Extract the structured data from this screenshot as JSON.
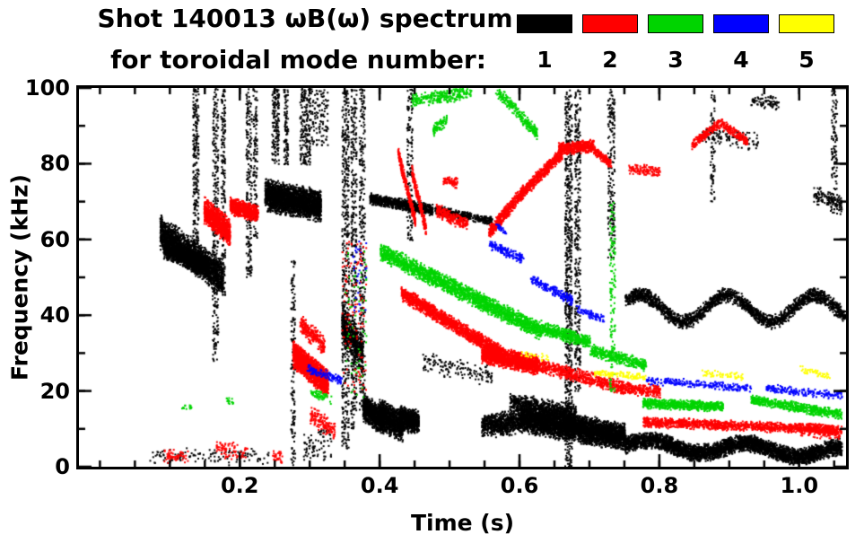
{
  "header": {
    "title_line1": "Shot 140013 ωB(ω) spectrum",
    "title_line2": "for toroidal mode number:",
    "legend": [
      {
        "label": "1",
        "color": "#000000"
      },
      {
        "label": "2",
        "color": "#ff0000"
      },
      {
        "label": "3",
        "color": "#00d400"
      },
      {
        "label": "4",
        "color": "#0000ff"
      },
      {
        "label": "5",
        "color": "#ffff00"
      }
    ]
  },
  "chart_data": {
    "type": "scatter",
    "title": "Shot 140013 ωB(ω) spectrum for toroidal mode number",
    "xlabel": "Time (s)",
    "ylabel": "Frequency (kHz)",
    "xlim": [
      -0.03,
      1.067
    ],
    "ylim": [
      0,
      100
    ],
    "x_major_ticks": [
      0.2,
      0.4,
      0.6,
      0.8,
      1.0
    ],
    "x_tick_labels": [
      "0.2",
      "0.4",
      "0.6",
      "0.8",
      "1.0"
    ],
    "x_minor_step": 0.05,
    "y_major_ticks": [
      0,
      20,
      40,
      60,
      80,
      100
    ],
    "y_tick_labels": [
      "0",
      "20",
      "40",
      "60",
      "80",
      "100"
    ],
    "y_minor_step": 10,
    "grid": false,
    "legend_position": "top-right",
    "series": [
      {
        "name": "1",
        "color": "#000000",
        "tracks": [
          {
            "t0": 0.085,
            "t1": 0.175,
            "f0": 62,
            "f1": 50,
            "w": 5,
            "n": 2200
          },
          {
            "t0": 0.09,
            "t1": 0.155,
            "f0": 58,
            "f1": 53,
            "w": 3,
            "n": 1200
          },
          {
            "t0": 0.132,
            "t1": 0.14,
            "f0": 55,
            "f1": 100,
            "u": true,
            "n": 250
          },
          {
            "t0": 0.16,
            "t1": 0.168,
            "f0": 28,
            "f1": 100,
            "u": true,
            "n": 300
          },
          {
            "t0": 0.172,
            "t1": 0.178,
            "f0": 45,
            "f1": 100,
            "u": true,
            "n": 200
          },
          {
            "t0": 0.208,
            "t1": 0.216,
            "f0": 50,
            "f1": 100,
            "u": true,
            "n": 200
          },
          {
            "t0": 0.218,
            "t1": 0.224,
            "f0": 60,
            "f1": 100,
            "u": true,
            "n": 120
          },
          {
            "t0": 0.235,
            "t1": 0.315,
            "f0": 72,
            "f1": 69,
            "w": 4.5,
            "n": 2600
          },
          {
            "t0": 0.245,
            "t1": 0.255,
            "f0": 80,
            "f1": 100,
            "u": true,
            "n": 150
          },
          {
            "t0": 0.262,
            "t1": 0.268,
            "f0": 80,
            "f1": 100,
            "u": true,
            "n": 100
          },
          {
            "t0": 0.285,
            "t1": 0.3,
            "f0": 80,
            "f1": 100,
            "u": true,
            "n": 200
          },
          {
            "t0": 0.272,
            "t1": 0.278,
            "f0": 0,
            "f1": 55,
            "u": true,
            "n": 150
          },
          {
            "t0": 0.29,
            "t1": 0.33,
            "f0": 2,
            "f1": 10,
            "u": true,
            "n": 80
          },
          {
            "t0": 0.3,
            "t1": 0.325,
            "f0": 85,
            "f1": 100,
            "u": true,
            "n": 120
          },
          {
            "t0": 0.345,
            "t1": 0.355,
            "f0": 5,
            "f1": 100,
            "u": true,
            "n": 500
          },
          {
            "t0": 0.358,
            "t1": 0.366,
            "f0": 10,
            "f1": 100,
            "u": true,
            "n": 350
          },
          {
            "t0": 0.37,
            "t1": 0.378,
            "f0": 15,
            "f1": 100,
            "u": true,
            "n": 300
          },
          {
            "t0": 0.345,
            "t1": 0.375,
            "f0": 38,
            "f1": 30,
            "w": 6,
            "n": 600
          },
          {
            "t0": 0.375,
            "t1": 0.405,
            "f0": 16,
            "f1": 12,
            "w": 4,
            "n": 900
          },
          {
            "t0": 0.398,
            "t1": 0.432,
            "f0": 14,
            "f1": 11,
            "w": 4.5,
            "n": 1000
          },
          {
            "t0": 0.428,
            "t1": 0.455,
            "f0": 13,
            "f1": 12,
            "w": 3.5,
            "n": 700
          },
          {
            "t0": 0.385,
            "t1": 0.475,
            "f0": 71,
            "f1": 68,
            "w": 1.6,
            "n": 900
          },
          {
            "t0": 0.478,
            "t1": 0.53,
            "f0": 68,
            "f1": 66,
            "w": 1.4,
            "n": 350
          },
          {
            "t0": 0.532,
            "t1": 0.56,
            "f0": 66,
            "f1": 65,
            "w": 1.2,
            "n": 120
          },
          {
            "t0": 0.438,
            "t1": 0.446,
            "f0": 60,
            "f1": 100,
            "u": true,
            "n": 150
          },
          {
            "t0": 0.46,
            "t1": 0.56,
            "f0": 28,
            "f1": 24,
            "w": 3,
            "n": 150
          },
          {
            "t0": 0.545,
            "t1": 0.6,
            "f0": 11,
            "f1": 12,
            "w": 3.5,
            "n": 700
          },
          {
            "t0": 0.585,
            "t1": 0.68,
            "f0": 17,
            "f1": 14,
            "w": 3,
            "n": 800
          },
          {
            "t0": 0.6,
            "t1": 0.75,
            "f0": 13,
            "f1": 8,
            "w": 4,
            "n": 4000
          },
          {
            "t0": 0.75,
            "t1": 1.06,
            "f0": 6,
            "f1": 4,
            "w": 2.5,
            "n": 4200,
            "wave": {
              "amp": 1.5,
              "per": 0.14,
              "ph": 0
            }
          },
          {
            "t0": 0.664,
            "t1": 0.674,
            "f0": 0,
            "f1": 100,
            "u": true,
            "n": 700
          },
          {
            "t0": 0.678,
            "t1": 0.686,
            "f0": 20,
            "f1": 100,
            "u": true,
            "n": 350
          },
          {
            "t0": 0.725,
            "t1": 0.735,
            "f0": 55,
            "f1": 100,
            "u": true,
            "n": 200
          },
          {
            "t0": 0.75,
            "t1": 1.065,
            "f0": 42,
            "f1": 42,
            "w": 2.2,
            "n": 2200,
            "wave": {
              "amp": 3.5,
              "per": 0.125,
              "ph": 0.5
            }
          },
          {
            "t0": 0.86,
            "t1": 0.94,
            "f0": 88,
            "f1": 86,
            "w": 2.5,
            "n": 120
          },
          {
            "t0": 0.93,
            "t1": 0.97,
            "f0": 97,
            "f1": 96,
            "w": 2,
            "n": 80
          },
          {
            "t0": 0.872,
            "t1": 0.878,
            "f0": 70,
            "f1": 100,
            "u": true,
            "n": 80
          },
          {
            "t0": 1.02,
            "t1": 1.06,
            "f0": 72,
            "f1": 69,
            "w": 3,
            "n": 150
          },
          {
            "t0": 1.045,
            "t1": 1.053,
            "f0": 70,
            "f1": 100,
            "u": true,
            "n": 100
          },
          {
            "t0": 0.07,
            "t1": 0.24,
            "f0": 3,
            "f1": 3,
            "w": 2.5,
            "n": 130
          }
        ]
      },
      {
        "name": "2",
        "color": "#ff0000",
        "tracks": [
          {
            "t0": 0.148,
            "t1": 0.185,
            "f0": 68,
            "f1": 62,
            "w": 4,
            "n": 900
          },
          {
            "t0": 0.185,
            "t1": 0.225,
            "f0": 69,
            "f1": 67,
            "w": 2.5,
            "n": 700
          },
          {
            "t0": 0.275,
            "t1": 0.325,
            "f0": 30,
            "f1": 22,
            "w": 4,
            "n": 1800
          },
          {
            "t0": 0.285,
            "t1": 0.32,
            "f0": 38,
            "f1": 32,
            "w": 3,
            "n": 250
          },
          {
            "t0": 0.3,
            "t1": 0.335,
            "f0": 14,
            "f1": 10,
            "w": 3,
            "n": 150
          },
          {
            "t0": 0.345,
            "t1": 0.38,
            "f0": 20,
            "f1": 60,
            "u": true,
            "n": 120
          },
          {
            "t0": 0.43,
            "t1": 0.575,
            "f0": 46,
            "f1": 30,
            "w": 2.2,
            "n": 1600
          },
          {
            "t0": 0.545,
            "t1": 0.625,
            "f0": 30,
            "f1": 27,
            "w": 2.8,
            "n": 1500
          },
          {
            "t0": 0.425,
            "t1": 0.45,
            "f0": 83,
            "f1": 65,
            "w": 2,
            "n": 350
          },
          {
            "t0": 0.445,
            "t1": 0.465,
            "f0": 78,
            "f1": 63,
            "w": 2,
            "n": 250
          },
          {
            "t0": 0.48,
            "t1": 0.525,
            "f0": 68,
            "f1": 64,
            "w": 2,
            "n": 250
          },
          {
            "t0": 0.49,
            "t1": 0.51,
            "f0": 76,
            "f1": 75,
            "w": 1.5,
            "n": 80
          },
          {
            "t0": 0.555,
            "t1": 0.6,
            "f0": 62,
            "f1": 72,
            "w": 2,
            "n": 400
          },
          {
            "t0": 0.6,
            "t1": 0.66,
            "f0": 72,
            "f1": 83,
            "w": 2,
            "n": 600
          },
          {
            "t0": 0.655,
            "t1": 0.705,
            "f0": 84,
            "f1": 85,
            "w": 1.8,
            "n": 500
          },
          {
            "t0": 0.705,
            "t1": 0.73,
            "f0": 84,
            "f1": 80,
            "w": 1.5,
            "n": 150
          },
          {
            "t0": 0.625,
            "t1": 0.75,
            "f0": 27,
            "f1": 21,
            "w": 2,
            "n": 700
          },
          {
            "t0": 0.75,
            "t1": 0.8,
            "f0": 21,
            "f1": 20,
            "w": 1.8,
            "n": 250
          },
          {
            "t0": 0.775,
            "t1": 1.055,
            "f0": 12,
            "f1": 10,
            "w": 1.5,
            "n": 1400
          },
          {
            "t0": 0.845,
            "t1": 0.885,
            "f0": 85,
            "f1": 91,
            "w": 1.5,
            "n": 200
          },
          {
            "t0": 0.885,
            "t1": 0.925,
            "f0": 91,
            "f1": 86,
            "w": 1.5,
            "n": 180
          },
          {
            "t0": 0.755,
            "t1": 0.8,
            "f0": 79,
            "f1": 78,
            "w": 1.5,
            "n": 120
          },
          {
            "t0": 0.09,
            "t1": 0.125,
            "f0": 3,
            "f1": 3,
            "w": 2,
            "n": 60
          },
          {
            "t0": 0.165,
            "t1": 0.21,
            "f0": 5,
            "f1": 4,
            "w": 2.5,
            "n": 80
          },
          {
            "t0": 0.245,
            "t1": 0.26,
            "f0": 3,
            "f1": 3,
            "w": 2,
            "n": 30
          },
          {
            "t0": 1.0,
            "t1": 1.06,
            "f0": 10,
            "f1": 9,
            "w": 2,
            "n": 150
          }
        ]
      },
      {
        "name": "3",
        "color": "#00d400",
        "tracks": [
          {
            "t0": 0.4,
            "t1": 0.63,
            "f0": 57,
            "f1": 36,
            "w": 2.6,
            "n": 2200
          },
          {
            "t0": 0.445,
            "t1": 0.53,
            "f0": 97,
            "f1": 99,
            "w": 2,
            "n": 300
          },
          {
            "t0": 0.475,
            "t1": 0.495,
            "f0": 89,
            "f1": 92,
            "w": 2,
            "n": 80
          },
          {
            "t0": 0.565,
            "t1": 0.625,
            "f0": 100,
            "f1": 88,
            "w": 2,
            "n": 250
          },
          {
            "t0": 0.63,
            "t1": 0.7,
            "f0": 37,
            "f1": 33,
            "w": 2,
            "n": 500
          },
          {
            "t0": 0.7,
            "t1": 0.78,
            "f0": 31,
            "f1": 27,
            "w": 1.8,
            "n": 400
          },
          {
            "t0": 0.728,
            "t1": 0.736,
            "f0": 20,
            "f1": 70,
            "u": true,
            "n": 150
          },
          {
            "t0": 0.775,
            "t1": 0.89,
            "f0": 17,
            "f1": 16,
            "w": 1.5,
            "n": 700
          },
          {
            "t0": 0.93,
            "t1": 1.06,
            "f0": 18,
            "f1": 14,
            "w": 1.5,
            "n": 600
          },
          {
            "t0": 0.115,
            "t1": 0.13,
            "f0": 16,
            "f1": 16,
            "w": 1,
            "n": 15
          },
          {
            "t0": 0.18,
            "t1": 0.19,
            "f0": 18,
            "f1": 17,
            "w": 1,
            "n": 15
          },
          {
            "t0": 0.3,
            "t1": 0.33,
            "f0": 20,
            "f1": 18,
            "w": 1.5,
            "n": 60
          },
          {
            "t0": 0.35,
            "t1": 0.38,
            "f0": 15,
            "f1": 60,
            "u": true,
            "n": 60
          }
        ]
      },
      {
        "name": "4",
        "color": "#0000ff",
        "tracks": [
          {
            "t0": 0.295,
            "t1": 0.345,
            "f0": 26,
            "f1": 23,
            "w": 1.5,
            "n": 120
          },
          {
            "t0": 0.555,
            "t1": 0.605,
            "f0": 59,
            "f1": 55,
            "w": 1.5,
            "n": 150
          },
          {
            "t0": 0.565,
            "t1": 0.58,
            "f0": 64,
            "f1": 62,
            "w": 1,
            "n": 25
          },
          {
            "t0": 0.615,
            "t1": 0.675,
            "f0": 50,
            "f1": 44,
            "w": 1.5,
            "n": 180
          },
          {
            "t0": 0.68,
            "t1": 0.72,
            "f0": 42,
            "f1": 39,
            "w": 1.2,
            "n": 80
          },
          {
            "t0": 0.78,
            "t1": 0.93,
            "f0": 23,
            "f1": 21,
            "w": 1.2,
            "n": 250
          },
          {
            "t0": 0.95,
            "t1": 1.06,
            "f0": 21,
            "f1": 19,
            "w": 1.2,
            "n": 200
          },
          {
            "t0": 0.36,
            "t1": 0.38,
            "f0": 40,
            "f1": 60,
            "u": true,
            "n": 30
          }
        ]
      },
      {
        "name": "5",
        "color": "#ffff00",
        "tracks": [
          {
            "t0": 0.705,
            "t1": 0.78,
            "f0": 25,
            "f1": 24,
            "w": 1,
            "n": 120
          },
          {
            "t0": 0.86,
            "t1": 0.92,
            "f0": 25,
            "f1": 24,
            "w": 1,
            "n": 60
          },
          {
            "t0": 1.0,
            "t1": 1.045,
            "f0": 26,
            "f1": 24,
            "w": 1,
            "n": 50
          },
          {
            "t0": 0.6,
            "t1": 0.64,
            "f0": 30,
            "f1": 29,
            "w": 1,
            "n": 25
          }
        ]
      }
    ]
  }
}
